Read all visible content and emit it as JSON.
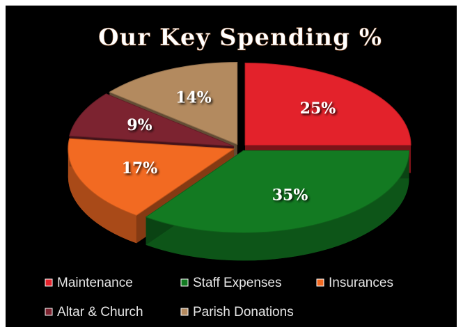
{
  "chart_data": {
    "type": "pie",
    "title": "Our Key Spending %",
    "categories": [
      "Maintenance",
      "Staff Expenses",
      "Insurances",
      "Altar & Church",
      "Parish Donations"
    ],
    "values": [
      25,
      35,
      17,
      9,
      14
    ],
    "value_labels": [
      "25%",
      "35%",
      "17%",
      "9%",
      "14%"
    ],
    "colors": [
      "#e3222b",
      "#137a22",
      "#f26a22",
      "#7c2330",
      "#b38a5f"
    ],
    "legend": "bottom"
  }
}
